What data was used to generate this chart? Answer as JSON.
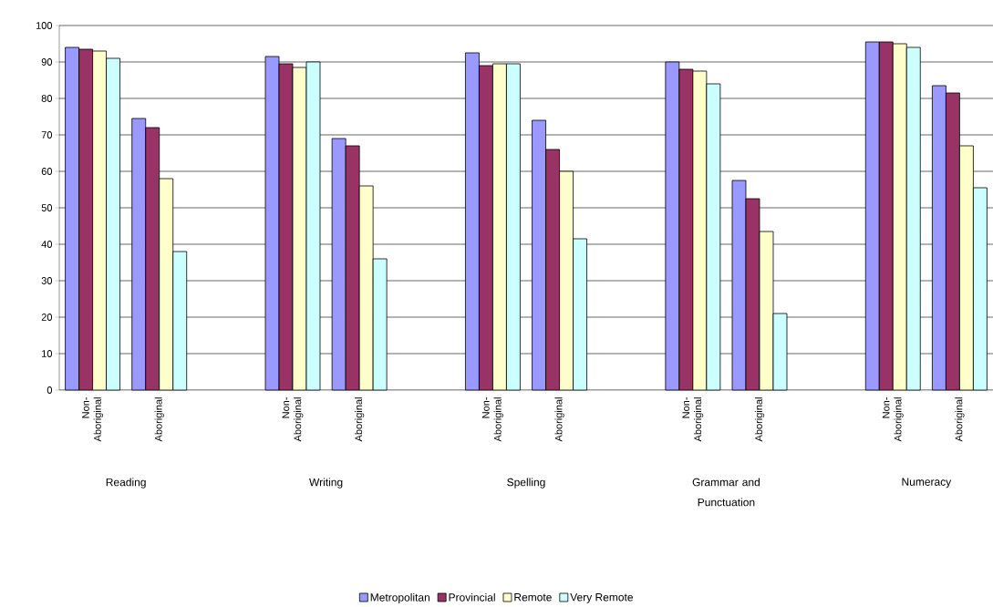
{
  "chart_data": {
    "type": "bar",
    "categories": [
      "Non-Aboriginal",
      "Aboriginal",
      null,
      "Non-Aboriginal",
      "Aboriginal",
      null,
      "Non-Aboriginal",
      "Aboriginal",
      null,
      "Non-Aboriginal",
      "Aboriginal",
      null,
      "Non-Aboriginal",
      "Aboriginal"
    ],
    "series": [
      {
        "name": "Metropolitan",
        "color": "#9999ff",
        "values": [
          94,
          74.5,
          null,
          91.5,
          69,
          null,
          92.5,
          74,
          null,
          90,
          57.5,
          null,
          95.5,
          83.5
        ]
      },
      {
        "name": "Provincial",
        "color": "#993366",
        "values": [
          93.5,
          72,
          null,
          89.5,
          67,
          null,
          89,
          66,
          null,
          88,
          52.5,
          null,
          95.5,
          81.5
        ]
      },
      {
        "name": "Remote",
        "color": "#ffffcc",
        "values": [
          93,
          58,
          null,
          88.5,
          56,
          null,
          89.5,
          60,
          null,
          87.5,
          43.5,
          null,
          95,
          67
        ]
      },
      {
        "name": "Very Remote",
        "color": "#ccffff",
        "values": [
          91,
          38,
          null,
          90,
          36,
          null,
          89.5,
          41.5,
          null,
          84,
          21,
          null,
          94,
          55.5
        ]
      }
    ],
    "annotations": [
      "Reading",
      "Writing",
      "Spelling",
      "Grammar and Punctuation",
      "Numeracy"
    ],
    "ylim": [
      0,
      100
    ],
    "yticks": [
      0,
      10,
      20,
      30,
      40,
      50,
      60,
      70,
      80,
      90,
      100
    ],
    "grid": "y",
    "legend": "bottom"
  }
}
